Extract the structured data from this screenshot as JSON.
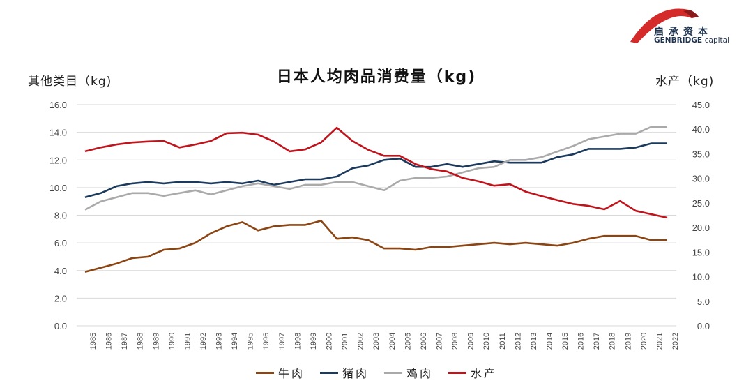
{
  "logo": {
    "cn": "启承资本",
    "en_main": "GENBRIDGE",
    "en_sub": "capital"
  },
  "chart_data": {
    "type": "line",
    "title": "日本人均肉品消费量（kg)",
    "ylabel": "其他类目（kg)",
    "y2label": "水产（kg)",
    "ylim": [
      0,
      16
    ],
    "y2lim": [
      0,
      45
    ],
    "yticks": [
      "0.0",
      "2.0",
      "4.0",
      "6.0",
      "8.0",
      "10.0",
      "12.0",
      "14.0",
      "16.0"
    ],
    "y2ticks": [
      "0.0",
      "5.0",
      "10.0",
      "15.0",
      "20.0",
      "25.0",
      "30.0",
      "35.0",
      "40.0",
      "45.0"
    ],
    "grid": true,
    "legend_position": "bottom",
    "x": [
      "1985",
      "1986",
      "1987",
      "1988",
      "1989",
      "1990",
      "1991",
      "1992",
      "1993",
      "1994",
      "1995",
      "1996",
      "1997",
      "1998",
      "1999",
      "2000",
      "2001",
      "2002",
      "2003",
      "2004",
      "2005",
      "2006",
      "2007",
      "2008",
      "2009",
      "2010",
      "2011",
      "2012",
      "2013",
      "2014",
      "2015",
      "2016",
      "2017",
      "2018",
      "2019",
      "2020",
      "2021",
      "2022"
    ],
    "series": [
      {
        "name": "牛肉",
        "axis": "left",
        "color": "#8b4513",
        "values": [
          3.9,
          4.2,
          4.5,
          4.9,
          5.0,
          5.5,
          5.6,
          6.0,
          6.7,
          7.2,
          7.5,
          6.9,
          7.2,
          7.3,
          7.3,
          7.6,
          6.3,
          6.4,
          6.2,
          5.6,
          5.6,
          5.5,
          5.7,
          5.7,
          5.8,
          5.9,
          6.0,
          5.9,
          6.0,
          5.9,
          5.8,
          6.0,
          6.3,
          6.5,
          6.5,
          6.5,
          6.2,
          6.2
        ]
      },
      {
        "name": "猪肉",
        "axis": "left",
        "color": "#1b3a5c",
        "values": [
          9.3,
          9.6,
          10.1,
          10.3,
          10.4,
          10.3,
          10.4,
          10.4,
          10.3,
          10.4,
          10.3,
          10.5,
          10.2,
          10.4,
          10.6,
          10.6,
          10.8,
          11.4,
          11.6,
          12.0,
          12.1,
          11.5,
          11.5,
          11.7,
          11.5,
          11.7,
          11.9,
          11.8,
          11.8,
          11.8,
          12.2,
          12.4,
          12.8,
          12.8,
          12.8,
          12.9,
          13.2,
          13.2
        ]
      },
      {
        "name": "鸡肉",
        "axis": "left",
        "color": "#aaaaaa",
        "values": [
          8.4,
          9.0,
          9.3,
          9.6,
          9.6,
          9.4,
          9.6,
          9.8,
          9.5,
          9.8,
          10.1,
          10.3,
          10.1,
          9.9,
          10.2,
          10.2,
          10.4,
          10.4,
          10.1,
          9.8,
          10.5,
          10.7,
          10.7,
          10.8,
          11.1,
          11.4,
          11.5,
          12.0,
          12.0,
          12.2,
          12.6,
          13.0,
          13.5,
          13.7,
          13.9,
          13.9,
          14.4,
          14.4
        ]
      },
      {
        "name": "水产",
        "axis": "right",
        "color": "#c0141c",
        "values": [
          35.5,
          36.3,
          36.9,
          37.3,
          37.5,
          37.6,
          36.3,
          36.9,
          37.6,
          39.2,
          39.3,
          38.9,
          37.5,
          35.5,
          35.9,
          37.3,
          40.3,
          37.6,
          35.8,
          34.6,
          34.6,
          32.9,
          31.9,
          31.4,
          30.1,
          29.4,
          28.5,
          28.8,
          27.3,
          26.4,
          25.6,
          24.8,
          24.4,
          23.7,
          25.4,
          23.4,
          22.7,
          22.0
        ]
      }
    ]
  }
}
